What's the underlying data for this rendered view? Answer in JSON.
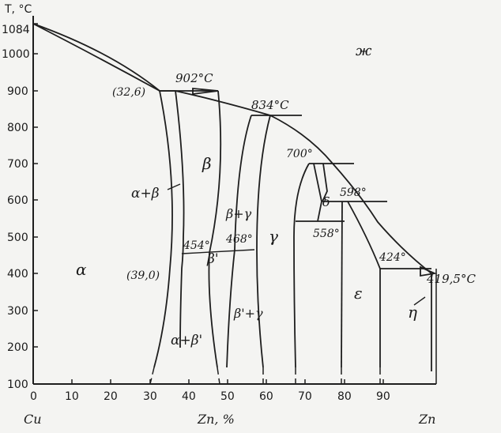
{
  "axes": {
    "y_title": "T, °C",
    "y_ticks": [
      "1084",
      "1000",
      "900",
      "800",
      "700",
      "600",
      "500",
      "400",
      "300",
      "200",
      "100"
    ],
    "x_ticks": [
      "0",
      "10",
      "20",
      "30",
      "40",
      "50",
      "60",
      "70",
      "80",
      "90"
    ],
    "x_left_label": "Cu",
    "x_center_label": "Zn, %",
    "x_right_label": "Zn"
  },
  "labels": {
    "liquid": "ж",
    "t902": "902°C",
    "t834": "834°C",
    "t700": "700°",
    "t598": "598°",
    "t558": "558°",
    "t424": "424°",
    "t4195": "419,5°C",
    "t454": "454°",
    "t468": "468°",
    "p326": "(32,6)",
    "p390": "(39,0)",
    "alpha": "α",
    "beta": "β",
    "gamma": "γ",
    "delta": "δ",
    "epsilon": "ε",
    "eta": "η",
    "alpha_beta": "α+β",
    "alpha_betaprime": "α+β'",
    "betaprime": "β'",
    "beta_gamma": "β+γ",
    "betaprime_gamma": "β'+γ"
  },
  "chart_data": {
    "type": "phase_diagram",
    "x_axis": {
      "min": 0,
      "max": 100,
      "unit": "Zn, %"
    },
    "y_axis": {
      "min": 100,
      "max": 1084,
      "unit": "T, °C"
    },
    "points": [
      {
        "x": 0,
        "y": 1084
      },
      {
        "x": 32.6,
        "y": 902
      },
      {
        "x": 37,
        "y": 902
      },
      {
        "x": 56,
        "y": 834
      },
      {
        "x": 60,
        "y": 834
      },
      {
        "x": 73,
        "y": 700
      },
      {
        "x": 78,
        "y": 598
      },
      {
        "x": 87,
        "y": 424
      },
      {
        "x": 100,
        "y": 419.5
      },
      {
        "x": 39,
        "y": 454
      },
      {
        "x": 47,
        "y": 468
      }
    ]
  }
}
